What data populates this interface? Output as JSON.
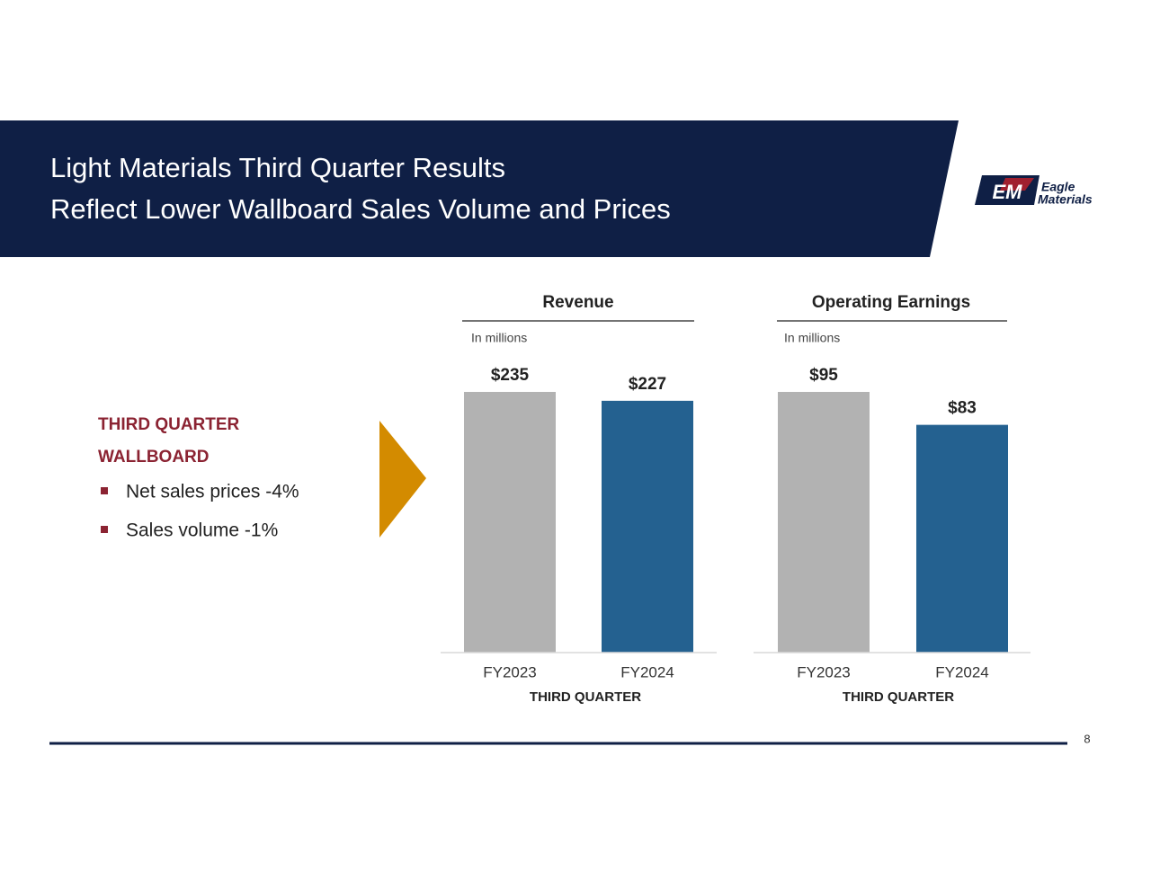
{
  "header": {
    "title_lines": [
      "Light Materials Third Quarter Results",
      "Reflect Lower Wallboard Sales Volume and Prices"
    ],
    "logo": {
      "mark": "EM",
      "lines": [
        "Eagle",
        "Materials"
      ]
    }
  },
  "sidebar": {
    "heading_lines": [
      "THIRD QUARTER",
      "WALLBOARD"
    ],
    "bullets": [
      "Net sales prices -4%",
      "Sales volume -1%"
    ]
  },
  "chart_data": [
    {
      "type": "bar",
      "title": "Revenue",
      "subtitle": "In millions",
      "x_label": "THIRD QUARTER",
      "categories": [
        "FY2023",
        "FY2024"
      ],
      "values": [
        235,
        227
      ],
      "value_labels": [
        "$235",
        "$227"
      ],
      "colors": [
        "#b2b2b2",
        "#246190"
      ]
    },
    {
      "type": "bar",
      "title": "Operating Earnings",
      "subtitle": "In millions",
      "x_label": "THIRD QUARTER",
      "categories": [
        "FY2023",
        "FY2024"
      ],
      "values": [
        95,
        83
      ],
      "value_labels": [
        "$95",
        "$83"
      ],
      "colors": [
        "#b2b2b2",
        "#246190"
      ]
    }
  ],
  "page_number": 8
}
